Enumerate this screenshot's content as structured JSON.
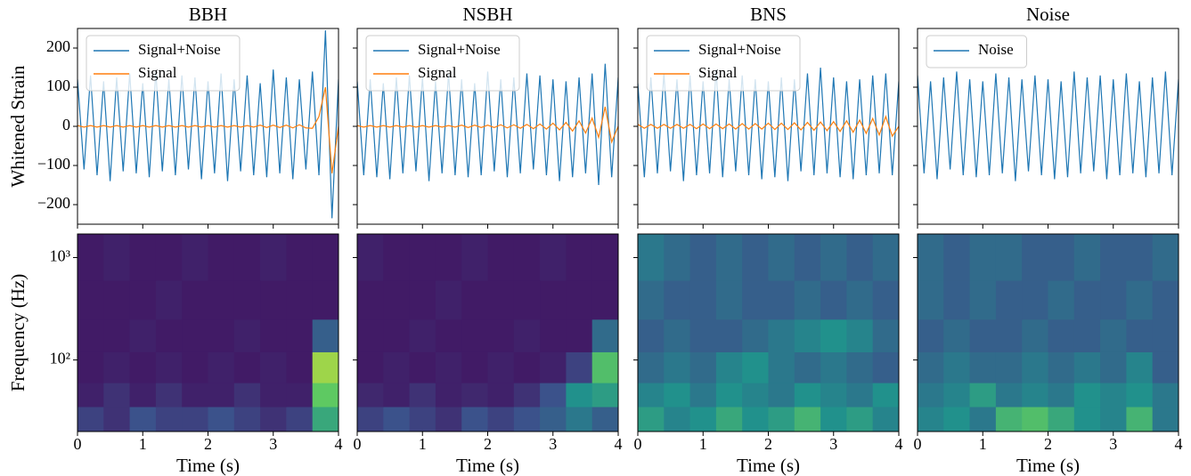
{
  "chart_data": [
    {
      "type": "line",
      "title": "BBH",
      "ylabel": "Whitened Strain",
      "legend": "upper left",
      "x": [
        0,
        0.1,
        0.2,
        0.3,
        0.4,
        0.5,
        0.6,
        0.7,
        0.8,
        0.9,
        1,
        1.1,
        1.2,
        1.3,
        1.4,
        1.5,
        1.6,
        1.7,
        1.8,
        1.9,
        2,
        2.1,
        2.2,
        2.3,
        2.4,
        2.5,
        2.6,
        2.7,
        2.8,
        2.9,
        3,
        3.1,
        3.2,
        3.3,
        3.4,
        3.5,
        3.6,
        3.7,
        3.8,
        3.9,
        4
      ],
      "series": [
        {
          "name": "Signal+Noise",
          "color": "#1f77b4",
          "values": [
            120,
            -110,
            130,
            -125,
            115,
            -140,
            125,
            -115,
            135,
            -120,
            110,
            -130,
            140,
            -115,
            120,
            -125,
            130,
            -110,
            125,
            -135,
            115,
            -120,
            135,
            -140,
            120,
            -115,
            130,
            -125,
            110,
            -130,
            145,
            -120,
            125,
            -135,
            120,
            -110,
            140,
            -125,
            245,
            -235,
            120
          ]
        },
        {
          "name": "Signal",
          "color": "#ff7f0e",
          "values": [
            2,
            -2,
            2,
            -2,
            2,
            -2,
            2,
            -2,
            2,
            -2,
            2,
            -2,
            2,
            -2,
            2,
            -2,
            2,
            -2,
            2,
            -2,
            2,
            -2,
            2,
            -2,
            2,
            -2,
            2,
            -2,
            3,
            -3,
            3,
            -3,
            3,
            -4,
            4,
            -4,
            -5,
            25,
            100,
            -120,
            0
          ]
        }
      ],
      "xlim": [
        0,
        4
      ],
      "xticks": [
        0,
        1,
        2,
        3,
        4
      ],
      "xtick_labels": false,
      "ylim": [
        -250,
        250
      ],
      "yticks": [
        {
          "value": -200,
          "label": "−200"
        },
        {
          "value": -100,
          "label": "−100"
        },
        0,
        100,
        200
      ]
    },
    {
      "type": "line",
      "title": "NSBH",
      "legend": "upper left",
      "x": [
        0,
        0.1,
        0.2,
        0.3,
        0.4,
        0.5,
        0.6,
        0.7,
        0.8,
        0.9,
        1,
        1.1,
        1.2,
        1.3,
        1.4,
        1.5,
        1.6,
        1.7,
        1.8,
        1.9,
        2,
        2.1,
        2.2,
        2.3,
        2.4,
        2.5,
        2.6,
        2.7,
        2.8,
        2.9,
        3,
        3.1,
        3.2,
        3.3,
        3.4,
        3.5,
        3.6,
        3.7,
        3.8,
        3.9,
        4
      ],
      "series": [
        {
          "name": "Signal+Noise",
          "color": "#1f77b4",
          "values": [
            115,
            -125,
            120,
            -130,
            110,
            -135,
            125,
            -120,
            130,
            -115,
            125,
            -140,
            115,
            -120,
            135,
            -125,
            120,
            -130,
            110,
            -125,
            140,
            -115,
            120,
            -130,
            125,
            -120,
            135,
            -110,
            130,
            -125,
            120,
            -140,
            115,
            -130,
            125,
            -120,
            135,
            -150,
            160,
            -130,
            125
          ]
        },
        {
          "name": "Signal",
          "color": "#ff7f0e",
          "values": [
            2,
            -2,
            2,
            -2,
            2,
            -2,
            2,
            -2,
            2,
            -2,
            2,
            -2,
            2,
            -2,
            2,
            -2,
            3,
            -3,
            3,
            -3,
            3,
            -3,
            4,
            -4,
            4,
            -5,
            5,
            -6,
            6,
            -7,
            8,
            -9,
            10,
            -12,
            14,
            -17,
            21,
            -28,
            50,
            -40,
            0
          ]
        }
      ],
      "xlim": [
        0,
        4
      ],
      "xticks": [
        0,
        1,
        2,
        3,
        4
      ],
      "xtick_labels": false,
      "ylim": [
        -250,
        250
      ],
      "yticks": [
        -200,
        -100,
        0,
        100,
        200
      ],
      "ytick_labels": false
    },
    {
      "type": "line",
      "title": "BNS",
      "legend": "upper left",
      "x": [
        0,
        0.1,
        0.2,
        0.3,
        0.4,
        0.5,
        0.6,
        0.7,
        0.8,
        0.9,
        1,
        1.1,
        1.2,
        1.3,
        1.4,
        1.5,
        1.6,
        1.7,
        1.8,
        1.9,
        2,
        2.1,
        2.2,
        2.3,
        2.4,
        2.5,
        2.6,
        2.7,
        2.8,
        2.9,
        3,
        3.1,
        3.2,
        3.3,
        3.4,
        3.5,
        3.6,
        3.7,
        3.8,
        3.9,
        4
      ],
      "series": [
        {
          "name": "Signal+Noise",
          "color": "#1f77b4",
          "values": [
            110,
            -130,
            125,
            -120,
            135,
            -115,
            120,
            -140,
            130,
            -125,
            115,
            -120,
            145,
            -130,
            120,
            -115,
            130,
            -125,
            120,
            -135,
            115,
            -130,
            125,
            -140,
            120,
            -115,
            135,
            -125,
            150,
            -120,
            125,
            -130,
            115,
            -135,
            120,
            -125,
            130,
            -120,
            135,
            -125,
            115
          ]
        },
        {
          "name": "Signal",
          "color": "#ff7f0e",
          "values": [
            5,
            -5,
            5,
            -5,
            5,
            -5,
            5,
            -5,
            5,
            -6,
            6,
            -6,
            6,
            -6,
            6,
            -7,
            7,
            -7,
            7,
            -7,
            8,
            -8,
            8,
            -8,
            9,
            -9,
            10,
            -10,
            11,
            -11,
            12,
            -13,
            14,
            -15,
            16,
            -18,
            20,
            -22,
            25,
            -25,
            0
          ]
        }
      ],
      "xlim": [
        0,
        4
      ],
      "xticks": [
        0,
        1,
        2,
        3,
        4
      ],
      "xtick_labels": false,
      "ylim": [
        -250,
        250
      ],
      "yticks": [
        -200,
        -100,
        0,
        100,
        200
      ],
      "ytick_labels": false
    },
    {
      "type": "line",
      "title": "Noise",
      "legend": "upper left",
      "x": [
        0,
        0.1,
        0.2,
        0.3,
        0.4,
        0.5,
        0.6,
        0.7,
        0.8,
        0.9,
        1,
        1.1,
        1.2,
        1.3,
        1.4,
        1.5,
        1.6,
        1.7,
        1.8,
        1.9,
        2,
        2.1,
        2.2,
        2.3,
        2.4,
        2.5,
        2.6,
        2.7,
        2.8,
        2.9,
        3,
        3.1,
        3.2,
        3.3,
        3.4,
        3.5,
        3.6,
        3.7,
        3.8,
        3.9,
        4
      ],
      "series": [
        {
          "name": "Noise",
          "color": "#1f77b4",
          "values": [
            130,
            -120,
            115,
            -135,
            125,
            -110,
            140,
            -125,
            120,
            -130,
            115,
            -125,
            135,
            -120,
            125,
            -140,
            120,
            -115,
            130,
            -125,
            120,
            -135,
            115,
            -130,
            140,
            -120,
            125,
            -115,
            130,
            -135,
            120,
            -125,
            135,
            -120,
            115,
            -130,
            125,
            -120,
            140,
            -125,
            120
          ]
        }
      ],
      "xlim": [
        0,
        4
      ],
      "xticks": [
        0,
        1,
        2,
        3,
        4
      ],
      "xtick_labels": false,
      "ylim": [
        -250,
        250
      ],
      "yticks": [
        -200,
        -100,
        0,
        100,
        200
      ],
      "ytick_labels": false
    },
    {
      "type": "heatmap",
      "xlabel": "Time (s)",
      "ylabel": "Frequency (Hz)",
      "colormap": "viridis",
      "ylog": true,
      "x": [
        0,
        0.4,
        0.8,
        1.2,
        1.6,
        2,
        2.4,
        2.8,
        3.2,
        3.6,
        4
      ],
      "y": [
        20,
        35,
        60,
        120,
        250,
        600,
        1700
      ],
      "z": [
        [
          0.2,
          0.15,
          0.25,
          0.2,
          0.2,
          0.25,
          0.2,
          0.15,
          0.2,
          0.6
        ],
        [
          0.1,
          0.15,
          0.1,
          0.15,
          0.1,
          0.1,
          0.15,
          0.1,
          0.1,
          0.75
        ],
        [
          0.08,
          0.1,
          0.08,
          0.1,
          0.08,
          0.1,
          0.08,
          0.1,
          0.08,
          0.85
        ],
        [
          0.08,
          0.08,
          0.1,
          0.08,
          0.08,
          0.08,
          0.1,
          0.08,
          0.08,
          0.3
        ],
        [
          0.08,
          0.08,
          0.08,
          0.1,
          0.08,
          0.08,
          0.08,
          0.08,
          0.08,
          0.08
        ],
        [
          0.08,
          0.1,
          0.08,
          0.08,
          0.1,
          0.08,
          0.08,
          0.1,
          0.08,
          0.08
        ]
      ],
      "xlim": [
        0,
        4
      ],
      "xticks": [
        0,
        1,
        2,
        3,
        4
      ],
      "ylim": [
        20,
        1700
      ],
      "yticks": [
        {
          "value": 100,
          "label": "10²"
        },
        {
          "value": 1000,
          "label": "10³"
        }
      ]
    },
    {
      "type": "heatmap",
      "xlabel": "Time (s)",
      "colormap": "viridis",
      "ylog": true,
      "x": [
        0,
        0.4,
        0.8,
        1.2,
        1.6,
        2,
        2.4,
        2.8,
        3.2,
        3.6,
        4
      ],
      "y": [
        20,
        35,
        60,
        120,
        250,
        600,
        1700
      ],
      "z": [
        [
          0.2,
          0.25,
          0.2,
          0.15,
          0.25,
          0.2,
          0.25,
          0.3,
          0.4,
          0.3
        ],
        [
          0.12,
          0.1,
          0.15,
          0.1,
          0.12,
          0.1,
          0.15,
          0.25,
          0.5,
          0.55
        ],
        [
          0.08,
          0.1,
          0.08,
          0.1,
          0.08,
          0.1,
          0.08,
          0.1,
          0.2,
          0.7
        ],
        [
          0.08,
          0.08,
          0.1,
          0.08,
          0.08,
          0.08,
          0.1,
          0.08,
          0.08,
          0.35
        ],
        [
          0.08,
          0.08,
          0.08,
          0.1,
          0.08,
          0.08,
          0.08,
          0.08,
          0.08,
          0.08
        ],
        [
          0.1,
          0.08,
          0.08,
          0.08,
          0.1,
          0.08,
          0.08,
          0.1,
          0.08,
          0.08
        ]
      ],
      "xlim": [
        0,
        4
      ],
      "xticks": [
        0,
        1,
        2,
        3,
        4
      ],
      "ylim": [
        20,
        1700
      ],
      "yticks": [
        100,
        1000
      ],
      "ytick_labels": false
    },
    {
      "type": "heatmap",
      "xlabel": "Time (s)",
      "colormap": "viridis",
      "ylog": true,
      "x": [
        0,
        0.4,
        0.8,
        1.2,
        1.6,
        2,
        2.4,
        2.8,
        3.2,
        3.6,
        4
      ],
      "y": [
        20,
        35,
        60,
        120,
        250,
        600,
        1700
      ],
      "z": [
        [
          0.55,
          0.45,
          0.5,
          0.6,
          0.5,
          0.55,
          0.65,
          0.5,
          0.55,
          0.45
        ],
        [
          0.45,
          0.5,
          0.4,
          0.5,
          0.45,
          0.4,
          0.5,
          0.45,
          0.4,
          0.5
        ],
        [
          0.35,
          0.4,
          0.35,
          0.45,
          0.5,
          0.4,
          0.35,
          0.4,
          0.35,
          0.3
        ],
        [
          0.3,
          0.35,
          0.3,
          0.3,
          0.35,
          0.4,
          0.45,
          0.5,
          0.45,
          0.35
        ],
        [
          0.35,
          0.3,
          0.3,
          0.35,
          0.3,
          0.3,
          0.35,
          0.3,
          0.35,
          0.3
        ],
        [
          0.4,
          0.35,
          0.3,
          0.35,
          0.3,
          0.35,
          0.3,
          0.35,
          0.3,
          0.35
        ]
      ],
      "xlim": [
        0,
        4
      ],
      "xticks": [
        0,
        1,
        2,
        3,
        4
      ],
      "ylim": [
        20,
        1700
      ],
      "yticks": [
        100,
        1000
      ],
      "ytick_labels": false
    },
    {
      "type": "heatmap",
      "xlabel": "Time (s)",
      "colormap": "viridis",
      "ylog": true,
      "x": [
        0,
        0.4,
        0.8,
        1.2,
        1.6,
        2,
        2.4,
        2.8,
        3.2,
        3.6,
        4
      ],
      "y": [
        20,
        35,
        60,
        120,
        250,
        600,
        1700
      ],
      "z": [
        [
          0.45,
          0.5,
          0.4,
          0.65,
          0.7,
          0.6,
          0.5,
          0.45,
          0.65,
          0.4
        ],
        [
          0.4,
          0.45,
          0.55,
          0.4,
          0.45,
          0.4,
          0.5,
          0.45,
          0.5,
          0.4
        ],
        [
          0.35,
          0.4,
          0.35,
          0.35,
          0.4,
          0.35,
          0.4,
          0.35,
          0.45,
          0.3
        ],
        [
          0.3,
          0.35,
          0.3,
          0.3,
          0.35,
          0.3,
          0.3,
          0.35,
          0.3,
          0.3
        ],
        [
          0.35,
          0.3,
          0.35,
          0.3,
          0.3,
          0.35,
          0.3,
          0.3,
          0.35,
          0.3
        ],
        [
          0.35,
          0.3,
          0.35,
          0.35,
          0.3,
          0.3,
          0.35,
          0.3,
          0.3,
          0.35
        ]
      ],
      "xlim": [
        0,
        4
      ],
      "xticks": [
        0,
        1,
        2,
        3,
        4
      ],
      "ylim": [
        20,
        1700
      ],
      "yticks": [
        100,
        1000
      ],
      "ytick_labels": false
    }
  ]
}
